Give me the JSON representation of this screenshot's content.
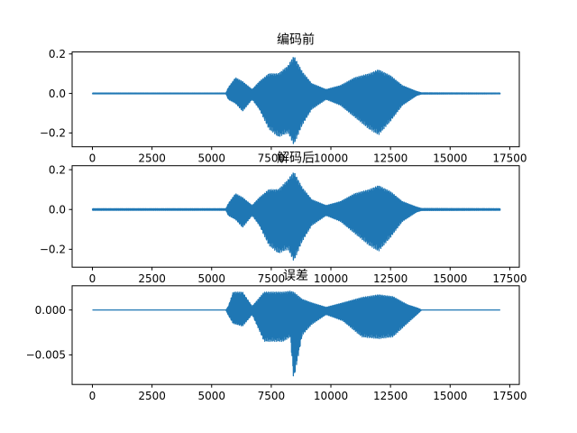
{
  "chart_data": [
    {
      "type": "line",
      "title": "编码前",
      "xlabel": "",
      "ylabel": "",
      "xlim": [
        -850,
        17900
      ],
      "ylim": [
        -0.27,
        0.21
      ],
      "xticks": [
        0,
        2500,
        5000,
        7500,
        10000,
        12500,
        15000,
        17500
      ],
      "xtick_labels": [
        "0",
        "2500",
        "5000",
        "7500",
        "10000",
        "12500",
        "15000",
        "17500"
      ],
      "yticks": [
        0.2,
        0.0,
        -0.2
      ],
      "ytick_labels": [
        "0.2",
        "0.0",
        "−0.2"
      ],
      "grid": false,
      "series": [
        {
          "color": "#1f77b4",
          "samples": 17100,
          "envelope": [
            {
              "x": 0,
              "max": 0.002,
              "min": -0.002
            },
            {
              "x": 5600,
              "max": 0.002,
              "min": -0.002
            },
            {
              "x": 5700,
              "max": 0.03,
              "min": -0.03
            },
            {
              "x": 6000,
              "max": 0.08,
              "min": -0.05
            },
            {
              "x": 6300,
              "max": 0.06,
              "min": -0.09
            },
            {
              "x": 6700,
              "max": 0.02,
              "min": -0.03
            },
            {
              "x": 7000,
              "max": 0.06,
              "min": -0.08
            },
            {
              "x": 7400,
              "max": 0.1,
              "min": -0.18
            },
            {
              "x": 7800,
              "max": 0.1,
              "min": -0.22
            },
            {
              "x": 8200,
              "max": 0.14,
              "min": -0.2
            },
            {
              "x": 8450,
              "max": 0.19,
              "min": -0.26
            },
            {
              "x": 8800,
              "max": 0.11,
              "min": -0.16
            },
            {
              "x": 9200,
              "max": 0.05,
              "min": -0.08
            },
            {
              "x": 9800,
              "max": 0.02,
              "min": -0.03
            },
            {
              "x": 10400,
              "max": 0.04,
              "min": -0.06
            },
            {
              "x": 11000,
              "max": 0.08,
              "min": -0.12
            },
            {
              "x": 11600,
              "max": 0.1,
              "min": -0.18
            },
            {
              "x": 12000,
              "max": 0.12,
              "min": -0.21
            },
            {
              "x": 12500,
              "max": 0.09,
              "min": -0.14
            },
            {
              "x": 13000,
              "max": 0.04,
              "min": -0.06
            },
            {
              "x": 13600,
              "max": 0.01,
              "min": -0.01
            },
            {
              "x": 13800,
              "max": 0.003,
              "min": -0.003
            },
            {
              "x": 17100,
              "max": 0.002,
              "min": -0.002
            }
          ]
        }
      ]
    },
    {
      "type": "line",
      "title": "解码后",
      "xlabel": "",
      "ylabel": "",
      "xlim": [
        -850,
        17900
      ],
      "ylim": [
        -0.29,
        0.22
      ],
      "xticks": [
        0,
        2500,
        5000,
        7500,
        10000,
        12500,
        15000,
        17500
      ],
      "xtick_labels": [
        "0",
        "2500",
        "5000",
        "7500",
        "10000",
        "12500",
        "15000",
        "17500"
      ],
      "yticks": [
        0.2,
        0.0,
        -0.2
      ],
      "ytick_labels": [
        "0.2",
        "0.0",
        "−0.2"
      ],
      "grid": false,
      "series": [
        {
          "color": "#1f77b4",
          "samples": 17100,
          "envelope": [
            {
              "x": 0,
              "max": 0.004,
              "min": -0.004
            },
            {
              "x": 5600,
              "max": 0.004,
              "min": -0.004
            },
            {
              "x": 5700,
              "max": 0.03,
              "min": -0.03
            },
            {
              "x": 6000,
              "max": 0.08,
              "min": -0.05
            },
            {
              "x": 6300,
              "max": 0.06,
              "min": -0.09
            },
            {
              "x": 6700,
              "max": 0.02,
              "min": -0.03
            },
            {
              "x": 7000,
              "max": 0.06,
              "min": -0.08
            },
            {
              "x": 7400,
              "max": 0.1,
              "min": -0.18
            },
            {
              "x": 7800,
              "max": 0.1,
              "min": -0.22
            },
            {
              "x": 8200,
              "max": 0.15,
              "min": -0.2
            },
            {
              "x": 8450,
              "max": 0.19,
              "min": -0.26
            },
            {
              "x": 8800,
              "max": 0.11,
              "min": -0.16
            },
            {
              "x": 9200,
              "max": 0.05,
              "min": -0.08
            },
            {
              "x": 9800,
              "max": 0.02,
              "min": -0.03
            },
            {
              "x": 10400,
              "max": 0.04,
              "min": -0.06
            },
            {
              "x": 11000,
              "max": 0.08,
              "min": -0.12
            },
            {
              "x": 11600,
              "max": 0.1,
              "min": -0.18
            },
            {
              "x": 12000,
              "max": 0.12,
              "min": -0.21
            },
            {
              "x": 12500,
              "max": 0.09,
              "min": -0.14
            },
            {
              "x": 13000,
              "max": 0.04,
              "min": -0.06
            },
            {
              "x": 13600,
              "max": 0.012,
              "min": -0.012
            },
            {
              "x": 13800,
              "max": 0.005,
              "min": -0.005
            },
            {
              "x": 17100,
              "max": 0.004,
              "min": -0.004
            }
          ]
        }
      ]
    },
    {
      "type": "line",
      "title": "误差",
      "xlabel": "",
      "ylabel": "",
      "xlim": [
        -850,
        17900
      ],
      "ylim": [
        -0.0083,
        0.0027
      ],
      "xticks": [
        0,
        2500,
        5000,
        7500,
        10000,
        12500,
        15000,
        17500
      ],
      "xtick_labels": [
        "0",
        "2500",
        "5000",
        "7500",
        "10000",
        "12500",
        "15000",
        "17500"
      ],
      "yticks": [
        0.0,
        -0.005
      ],
      "ytick_labels": [
        "0.000",
        "−0.005"
      ],
      "grid": false,
      "series": [
        {
          "color": "#1f77b4",
          "samples": 17100,
          "envelope": [
            {
              "x": 0,
              "max": 0.0,
              "min": 0.0
            },
            {
              "x": 5600,
              "max": 0.0,
              "min": 0.0
            },
            {
              "x": 5700,
              "max": 0.0004,
              "min": -0.0006
            },
            {
              "x": 5900,
              "max": 0.002,
              "min": -0.0015
            },
            {
              "x": 6300,
              "max": 0.002,
              "min": -0.0018
            },
            {
              "x": 6700,
              "max": 0.0004,
              "min": -0.0005
            },
            {
              "x": 7200,
              "max": 0.002,
              "min": -0.0035
            },
            {
              "x": 7600,
              "max": 0.002,
              "min": -0.0035
            },
            {
              "x": 8000,
              "max": 0.002,
              "min": -0.0035
            },
            {
              "x": 8300,
              "max": 0.0021,
              "min": -0.003
            },
            {
              "x": 8440,
              "max": 0.002,
              "min": -0.0078
            },
            {
              "x": 8800,
              "max": 0.0012,
              "min": -0.0028
            },
            {
              "x": 9200,
              "max": 0.0008,
              "min": -0.0016
            },
            {
              "x": 9800,
              "max": 0.0003,
              "min": -0.0005
            },
            {
              "x": 10500,
              "max": 0.0008,
              "min": -0.0012
            },
            {
              "x": 11300,
              "max": 0.0014,
              "min": -0.003
            },
            {
              "x": 12000,
              "max": 0.0017,
              "min": -0.0032
            },
            {
              "x": 12600,
              "max": 0.0015,
              "min": -0.003
            },
            {
              "x": 13200,
              "max": 0.0006,
              "min": -0.0015
            },
            {
              "x": 13650,
              "max": 0.0002,
              "min": -0.0004
            },
            {
              "x": 13800,
              "max": 0.0,
              "min": 0.0
            },
            {
              "x": 17100,
              "max": 0.0,
              "min": 0.0
            }
          ]
        }
      ]
    }
  ]
}
